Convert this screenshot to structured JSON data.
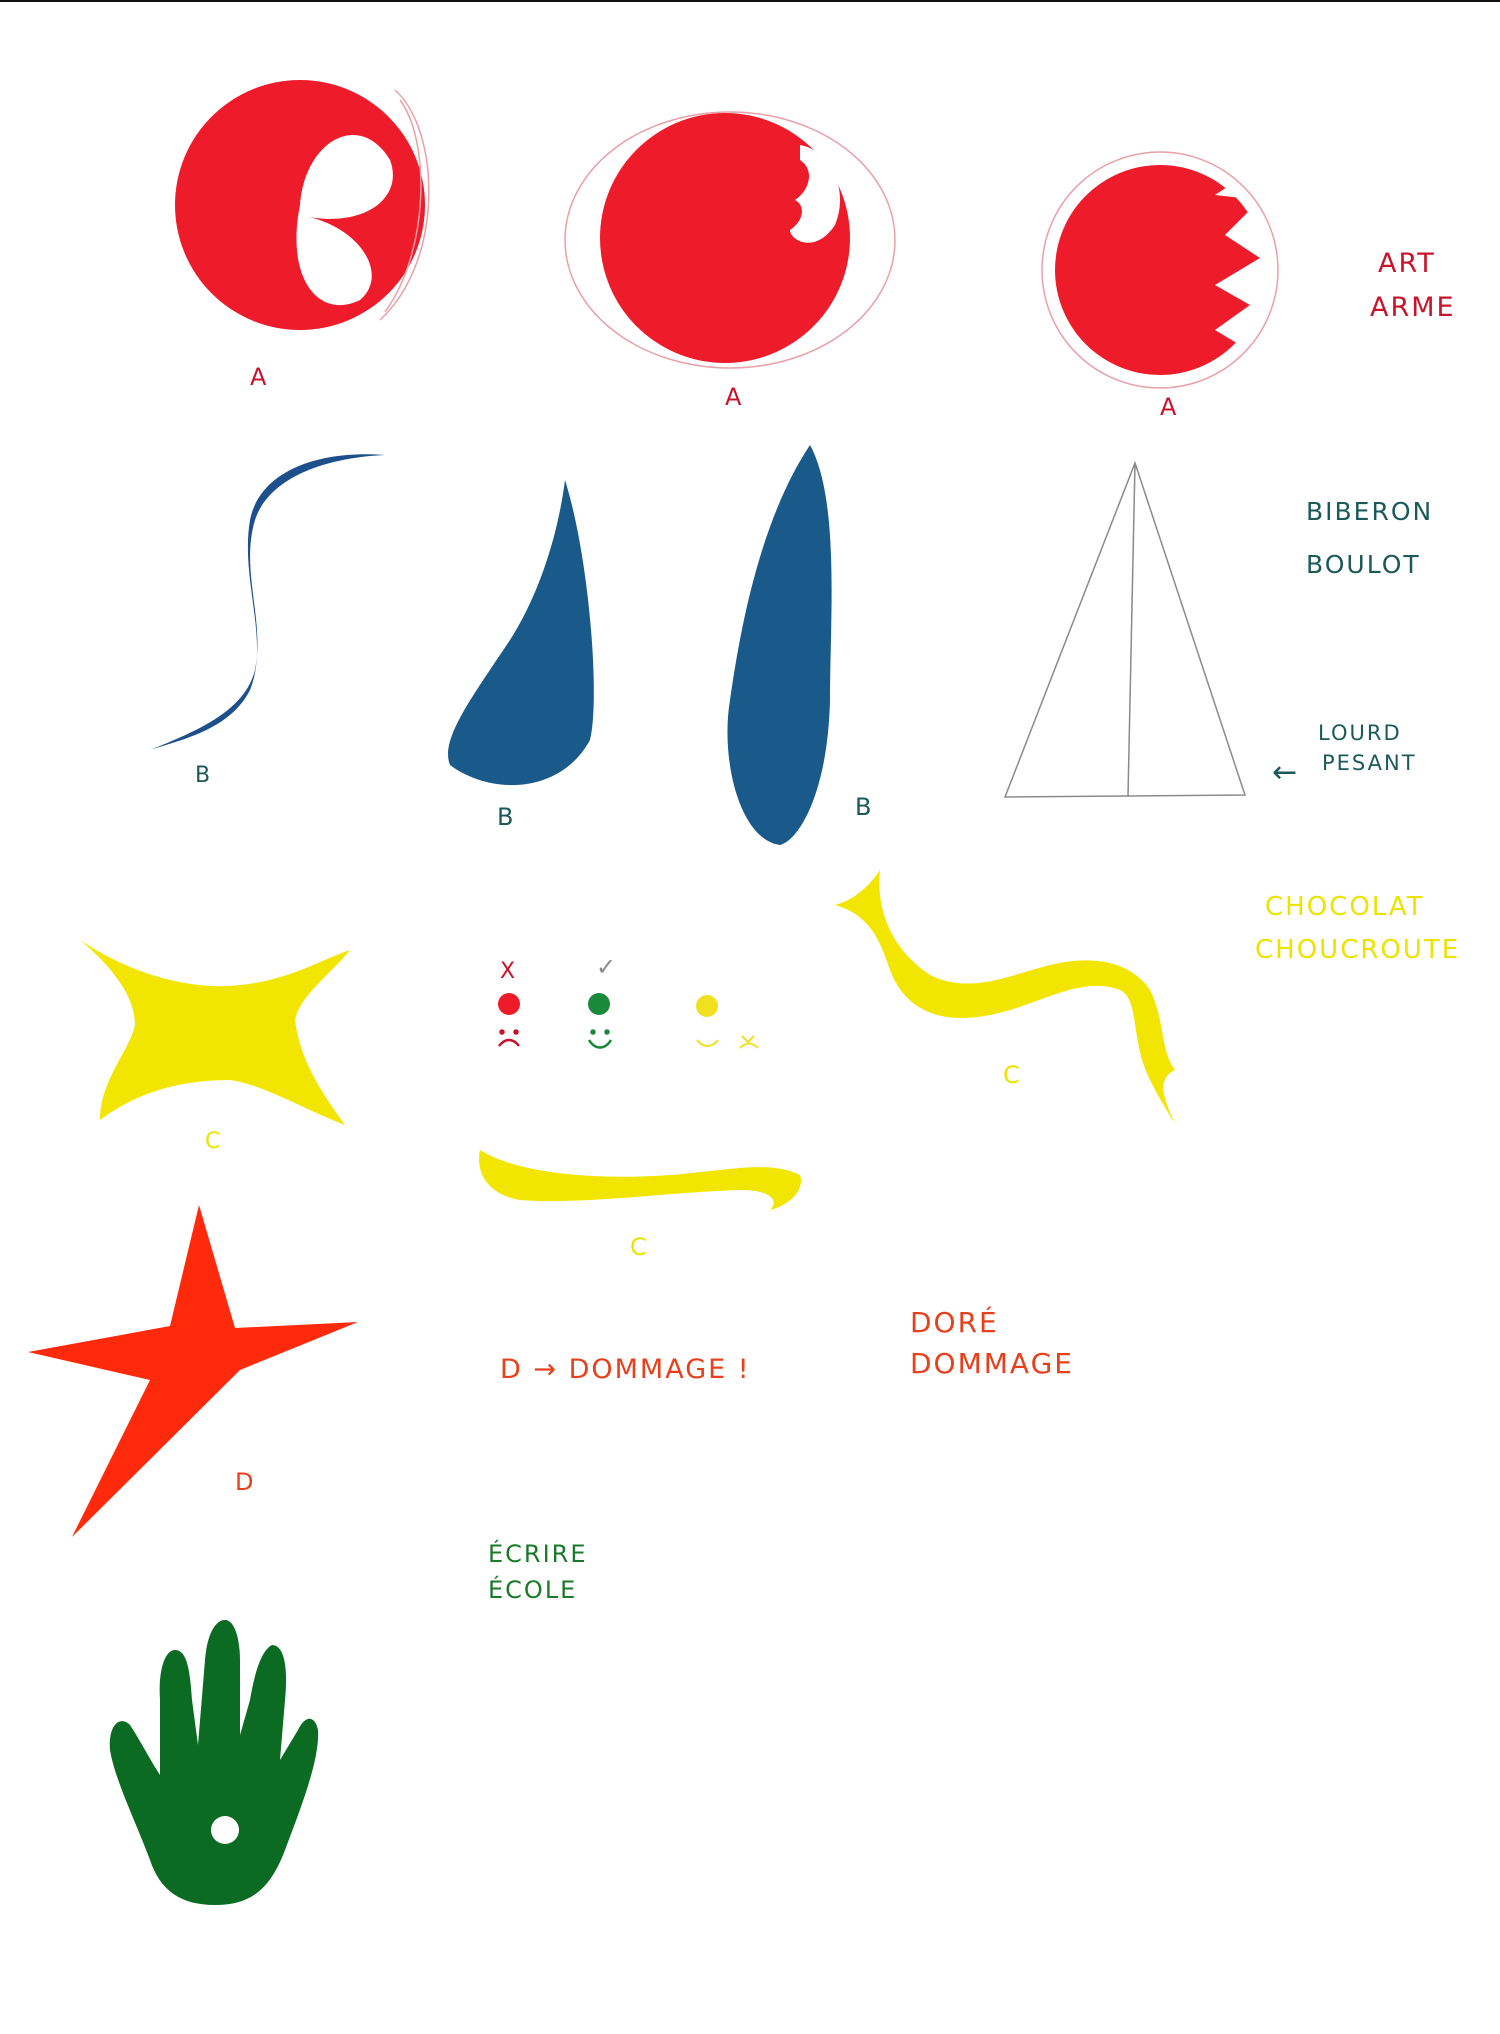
{
  "colors": {
    "red": "#ee1c2a",
    "blue": "#1c4f8c",
    "blue_dark": "#1a5a8a",
    "yellow": "#f2e600",
    "orange_red": "#ff2a0c",
    "green": "#0c6b22",
    "pencil": "#8a8a8a",
    "label_red": "#c8142a",
    "label_teal": "#1c5a5a",
    "label_yellow": "#ece400",
    "label_orange": "#e8401c",
    "label_green": "#1a7a2a",
    "smiley_green": "#1a8a3a",
    "smiley_yellow": "#f0e020"
  },
  "row_a": {
    "labels": [
      "A",
      "A",
      "A"
    ],
    "words": [
      "ART",
      "ARME"
    ]
  },
  "row_b": {
    "labels": [
      "B",
      "B",
      "B"
    ],
    "words": [
      "BIBERON",
      "BOULOT"
    ],
    "annotation": [
      "LOURD",
      "PESANT"
    ],
    "arrow_glyph": "←"
  },
  "row_c": {
    "labels": [
      "C",
      "C",
      "C"
    ],
    "words": [
      "CHOCOLAT",
      "CHOUCROUTE"
    ],
    "marks": [
      "X",
      "✓"
    ]
  },
  "row_d": {
    "label": "D",
    "sentence": "D → DOMMAGE !",
    "words": [
      "DORÉ",
      "DOMMAGE"
    ]
  },
  "row_e": {
    "words": [
      "ÉCRIRE",
      "ÉCOLE"
    ]
  }
}
